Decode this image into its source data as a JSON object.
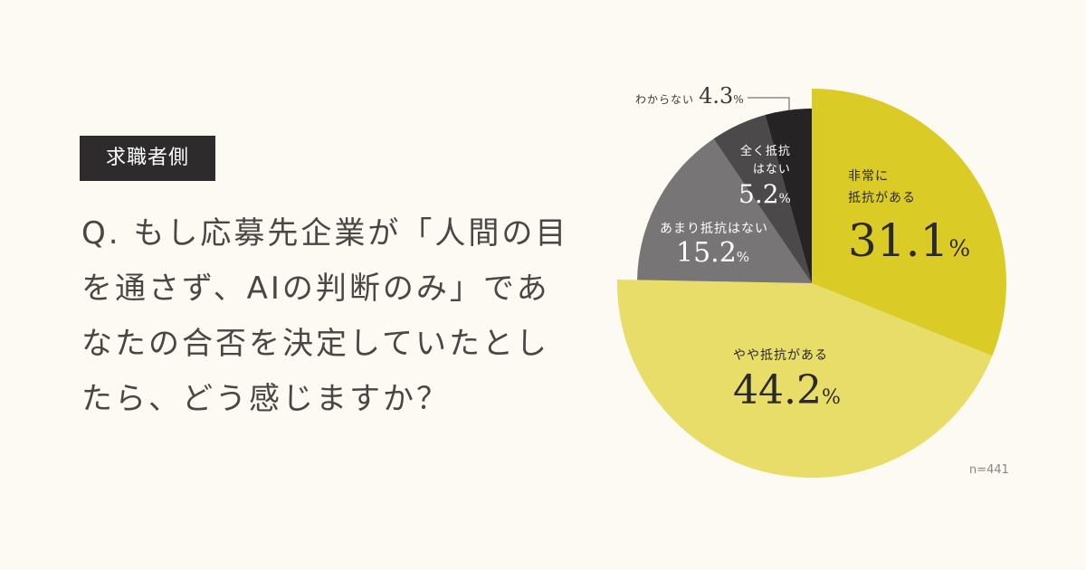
{
  "badge": "求職者側",
  "question": "Q. もし応募先企業が「人間の目を通さず、AIの判断のみ」であなたの合否を決定していたとしたら、どう感じますか？",
  "colors": {
    "background": "#fcfaf3",
    "badge": "#2e2b2c",
    "text": "#4a4646"
  },
  "chart_data": {
    "type": "pie",
    "start": "12 o'clock, clockwise",
    "sample_size": "n=441",
    "slices": [
      {
        "label": "非常に\n抵抗がある",
        "value": 31.1,
        "display": "31.1",
        "unit": "%",
        "color": "#dbcb26",
        "exploded": true
      },
      {
        "label": "やや抵抗がある",
        "value": 44.2,
        "display": "44.2",
        "unit": "%",
        "color": "#e8dd68",
        "exploded": true
      },
      {
        "label": "あまり抵抗はない",
        "value": 15.2,
        "display": "15.2",
        "unit": "%",
        "color": "#777576",
        "exploded": false
      },
      {
        "label": "全く抵抗\nはない",
        "value": 5.2,
        "display": "5.2",
        "unit": "%",
        "color": "#4b4949",
        "exploded": false
      },
      {
        "label": "わからない",
        "value": 4.3,
        "display": "4.3",
        "unit": "%",
        "color": "#252324",
        "exploded": false
      }
    ]
  }
}
